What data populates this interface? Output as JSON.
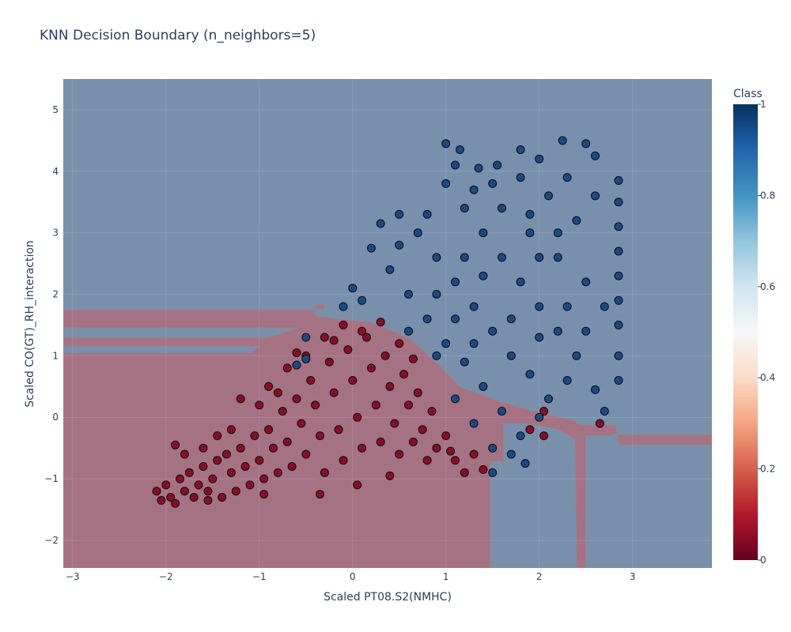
{
  "chart_data": {
    "type": "scatter",
    "title": "KNN Decision Boundary (n_neighbors=5)",
    "xlabel": "Scaled PT08.S2(NMHC)",
    "ylabel": "Scaled CO(GT)_RH_interaction",
    "xlim": [
      -3.1,
      3.85
    ],
    "ylim": [
      -2.45,
      5.5
    ],
    "x_ticks": [
      -3,
      -2,
      -1,
      0,
      1,
      2,
      3
    ],
    "y_ticks": [
      -2,
      -1,
      0,
      1,
      2,
      3,
      4,
      5
    ],
    "grid": true,
    "colorbar": {
      "title": "Class",
      "range": [
        0,
        1
      ],
      "ticks": [
        0,
        0.2,
        0.4,
        0.6,
        0.8,
        1
      ],
      "colorscale": [
        "#67001f",
        "#b2182b",
        "#d6604d",
        "#f4a582",
        "#fddbc7",
        "#f7f7f7",
        "#d1e5f0",
        "#92c5de",
        "#4393c3",
        "#2166ac",
        "#053061"
      ]
    },
    "colors": {
      "class0_point": "#8b0d25",
      "class1_point": "#1a4a86",
      "region0": "#a57284",
      "region1": "#7990ad"
    },
    "decision_region_class0": [
      [
        -3.1,
        -2.45
      ],
      [
        1.48,
        -2.45
      ],
      [
        1.48,
        -0.72
      ],
      [
        1.62,
        -0.72
      ],
      [
        1.62,
        -0.1
      ],
      [
        1.85,
        -0.1
      ],
      [
        2.2,
        -0.2
      ],
      [
        2.38,
        -0.35
      ],
      [
        2.4,
        -2.45
      ],
      [
        2.5,
        -2.45
      ],
      [
        2.5,
        -0.3
      ],
      [
        2.75,
        -0.3
      ],
      [
        2.78,
        -0.28
      ],
      [
        3.85,
        -0.28
      ],
      [
        3.85,
        -2.45
      ],
      [
        3.85,
        -0.45
      ],
      [
        2.85,
        -0.45
      ],
      [
        2.82,
        -0.12
      ],
      [
        2.42,
        -0.12
      ],
      [
        2.38,
        -0.05
      ],
      [
        2.1,
        0.05
      ],
      [
        1.95,
        0.1
      ],
      [
        1.6,
        0.25
      ],
      [
        1.15,
        0.5
      ],
      [
        0.9,
        0.9
      ],
      [
        0.6,
        1.3
      ],
      [
        0.2,
        1.55
      ],
      [
        -0.4,
        1.65
      ],
      [
        -0.4,
        1.82
      ],
      [
        -0.3,
        1.85
      ],
      [
        -0.3,
        1.75
      ],
      [
        -3.1,
        1.75
      ],
      [
        -3.1,
        1.45
      ],
      [
        -0.6,
        1.45
      ],
      [
        -0.9,
        1.3
      ],
      [
        -3.1,
        1.3
      ],
      [
        -3.1,
        1.15
      ],
      [
        -1.0,
        1.15
      ],
      [
        -1.1,
        1.05
      ],
      [
        -3.1,
        1.05
      ]
    ],
    "series": [
      {
        "name": "0",
        "points": [
          [
            -2.1,
            -1.2
          ],
          [
            -2.0,
            -1.1
          ],
          [
            -1.95,
            -1.3
          ],
          [
            -1.9,
            -1.4
          ],
          [
            -1.85,
            -1.0
          ],
          [
            -1.8,
            -1.2
          ],
          [
            -1.75,
            -0.9
          ],
          [
            -1.7,
            -1.3
          ],
          [
            -1.65,
            -1.1
          ],
          [
            -1.6,
            -0.8
          ],
          [
            -1.55,
            -1.2
          ],
          [
            -1.5,
            -1.0
          ],
          [
            -1.45,
            -0.7
          ],
          [
            -1.4,
            -1.3
          ],
          [
            -1.35,
            -0.6
          ],
          [
            -1.3,
            -0.9
          ],
          [
            -1.25,
            -1.2
          ],
          [
            -1.2,
            -0.5
          ],
          [
            -1.15,
            -0.8
          ],
          [
            -1.1,
            -1.1
          ],
          [
            -1.05,
            -0.3
          ],
          [
            -1.0,
            -0.7
          ],
          [
            -0.95,
            -1.0
          ],
          [
            -0.9,
            -0.2
          ],
          [
            -0.85,
            -0.5
          ],
          [
            -0.8,
            -0.9
          ],
          [
            -0.75,
            0.1
          ],
          [
            -0.7,
            -0.4
          ],
          [
            -0.65,
            -0.8
          ],
          [
            -0.6,
            0.3
          ],
          [
            -0.55,
            -0.1
          ],
          [
            -0.5,
            -0.6
          ],
          [
            -0.45,
            0.6
          ],
          [
            -0.4,
            0.2
          ],
          [
            -0.35,
            -0.3
          ],
          [
            -0.3,
            -0.9
          ],
          [
            -0.25,
            0.9
          ],
          [
            -0.2,
            0.4
          ],
          [
            -0.15,
            -0.2
          ],
          [
            -0.1,
            -0.7
          ],
          [
            -0.05,
            1.1
          ],
          [
            0.0,
            0.6
          ],
          [
            0.05,
            0.0
          ],
          [
            0.1,
            -0.5
          ],
          [
            0.15,
            1.3
          ],
          [
            0.2,
            0.8
          ],
          [
            0.25,
            0.2
          ],
          [
            0.3,
            -0.4
          ],
          [
            0.35,
            1.0
          ],
          [
            0.4,
            0.5
          ],
          [
            0.45,
            -0.1
          ],
          [
            0.5,
            -0.6
          ],
          [
            0.55,
            0.7
          ],
          [
            0.6,
            0.2
          ],
          [
            0.65,
            -0.4
          ],
          [
            0.7,
            0.4
          ],
          [
            0.75,
            -0.2
          ],
          [
            0.8,
            -0.7
          ],
          [
            0.85,
            0.1
          ],
          [
            0.9,
            -0.5
          ],
          [
            1.0,
            -0.3
          ],
          [
            1.1,
            -0.7
          ],
          [
            1.2,
            -0.9
          ],
          [
            1.3,
            -0.6
          ],
          [
            1.9,
            -0.2
          ],
          [
            2.05,
            0.1
          ],
          [
            2.05,
            -0.3
          ],
          [
            2.65,
            -0.1
          ],
          [
            -1.3,
            -0.2
          ],
          [
            -1.0,
            0.2
          ],
          [
            -0.9,
            0.5
          ],
          [
            -0.7,
            0.8
          ],
          [
            -0.5,
            1.0
          ],
          [
            -0.3,
            1.3
          ],
          [
            -0.1,
            1.5
          ],
          [
            0.1,
            1.4
          ],
          [
            0.3,
            1.55
          ],
          [
            0.5,
            1.2
          ],
          [
            -1.6,
            -0.5
          ],
          [
            -1.8,
            -0.6
          ],
          [
            -1.2,
            0.3
          ],
          [
            -0.8,
            0.4
          ],
          [
            -2.05,
            -1.35
          ],
          [
            -1.9,
            -0.45
          ],
          [
            -1.45,
            -0.3
          ],
          [
            -0.6,
            1.05
          ],
          [
            -0.2,
            1.25
          ],
          [
            0.65,
            0.95
          ],
          [
            1.05,
            -0.55
          ],
          [
            1.4,
            -0.85
          ],
          [
            -1.55,
            -1.35
          ],
          [
            -0.95,
            -1.25
          ],
          [
            -0.35,
            -1.25
          ],
          [
            0.05,
            -1.1
          ],
          [
            0.4,
            -0.95
          ]
        ]
      },
      {
        "name": "1",
        "points": [
          [
            1.0,
            4.45
          ],
          [
            1.15,
            4.35
          ],
          [
            1.35,
            4.05
          ],
          [
            1.55,
            4.1
          ],
          [
            1.8,
            4.35
          ],
          [
            2.0,
            4.2
          ],
          [
            2.25,
            4.5
          ],
          [
            2.5,
            4.45
          ],
          [
            2.6,
            4.25
          ],
          [
            2.85,
            3.85
          ],
          [
            2.85,
            3.5
          ],
          [
            2.85,
            3.1
          ],
          [
            2.85,
            2.7
          ],
          [
            2.85,
            2.3
          ],
          [
            2.85,
            1.9
          ],
          [
            2.85,
            1.5
          ],
          [
            2.85,
            1.0
          ],
          [
            2.85,
            0.6
          ],
          [
            2.7,
            0.1
          ],
          [
            2.6,
            0.45
          ],
          [
            2.4,
            1.0
          ],
          [
            2.3,
            0.6
          ],
          [
            2.1,
            0.3
          ],
          [
            1.9,
            0.7
          ],
          [
            1.7,
            1.0
          ],
          [
            1.5,
            1.4
          ],
          [
            1.3,
            1.8
          ],
          [
            1.1,
            2.2
          ],
          [
            0.9,
            2.6
          ],
          [
            0.7,
            3.0
          ],
          [
            0.5,
            3.3
          ],
          [
            0.3,
            3.15
          ],
          [
            0.2,
            2.75
          ],
          [
            0.4,
            2.4
          ],
          [
            0.6,
            2.0
          ],
          [
            0.8,
            1.6
          ],
          [
            1.0,
            1.2
          ],
          [
            1.2,
            0.9
          ],
          [
            1.4,
            0.5
          ],
          [
            1.6,
            0.1
          ],
          [
            1.8,
            -0.3
          ],
          [
            2.0,
            0.0
          ],
          [
            2.2,
            1.4
          ],
          [
            2.0,
            1.8
          ],
          [
            1.8,
            2.2
          ],
          [
            1.6,
            2.6
          ],
          [
            1.4,
            3.0
          ],
          [
            1.2,
            3.4
          ],
          [
            1.0,
            3.8
          ],
          [
            1.3,
            3.7
          ],
          [
            1.6,
            3.4
          ],
          [
            1.9,
            3.0
          ],
          [
            2.2,
            2.6
          ],
          [
            2.5,
            2.2
          ],
          [
            2.7,
            1.8
          ],
          [
            2.4,
            3.2
          ],
          [
            2.1,
            3.6
          ],
          [
            1.8,
            3.9
          ],
          [
            2.3,
            3.9
          ],
          [
            2.6,
            3.6
          ],
          [
            0.0,
            2.1
          ],
          [
            -0.1,
            1.8
          ],
          [
            0.1,
            1.9
          ],
          [
            -0.5,
            1.3
          ],
          [
            -0.6,
            0.85
          ],
          [
            -0.5,
            0.95
          ],
          [
            0.6,
            1.4
          ],
          [
            0.9,
            1.0
          ],
          [
            1.1,
            0.3
          ],
          [
            1.3,
            -0.1
          ],
          [
            1.5,
            -0.5
          ],
          [
            1.7,
            -0.6
          ],
          [
            1.85,
            -0.75
          ],
          [
            1.5,
            -0.9
          ],
          [
            1.2,
            2.6
          ],
          [
            0.8,
            3.3
          ],
          [
            0.5,
            2.8
          ],
          [
            1.4,
            2.3
          ],
          [
            1.7,
            1.6
          ],
          [
            2.0,
            1.3
          ],
          [
            2.3,
            1.8
          ],
          [
            2.5,
            1.4
          ],
          [
            2.0,
            2.6
          ],
          [
            2.2,
            3.0
          ],
          [
            1.9,
            3.3
          ],
          [
            1.5,
            3.8
          ],
          [
            1.1,
            4.1
          ],
          [
            0.9,
            2.0
          ],
          [
            1.1,
            1.6
          ],
          [
            1.3,
            1.2
          ]
        ]
      }
    ]
  }
}
